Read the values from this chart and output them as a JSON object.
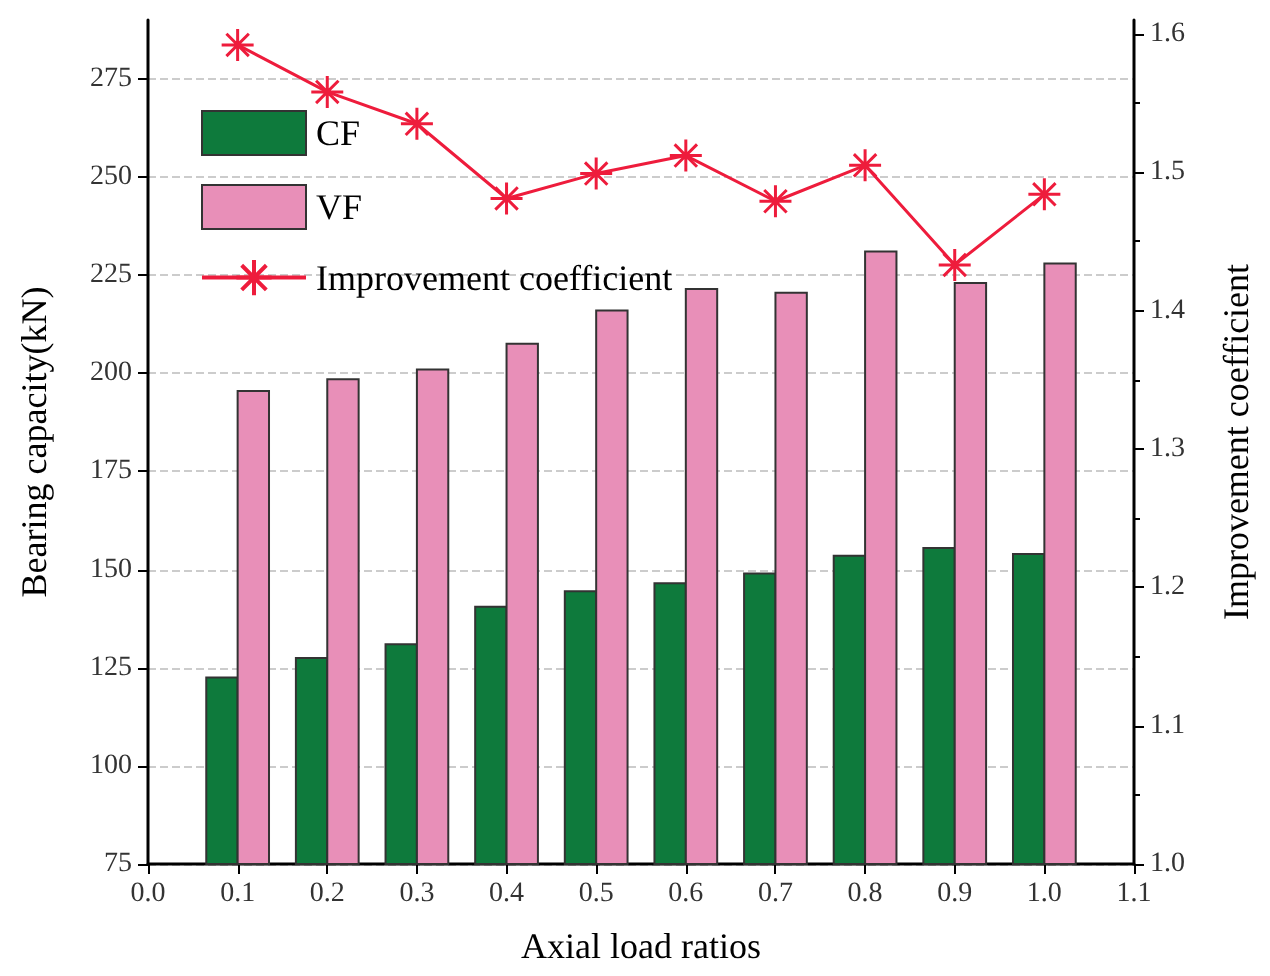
{
  "chart_data": {
    "type": "bar",
    "xlabel": "Axial load ratios",
    "ylabel": "Bearing capacity(kN)",
    "y2label": "Improvement coefficient",
    "x": [
      0.1,
      0.2,
      0.3,
      0.4,
      0.5,
      0.6,
      0.7,
      0.8,
      0.9,
      1.0
    ],
    "xlim": [
      0.0,
      1.1
    ],
    "xticks": [
      {
        "value": 0.0,
        "label": "0.0"
      },
      0.1,
      0.2,
      0.3,
      0.4,
      0.5,
      0.6,
      0.7,
      0.8,
      0.9,
      {
        "value": 1.0,
        "label": "1.0"
      },
      1.1
    ],
    "ylim": [
      75,
      290
    ],
    "yticks": [
      75,
      100,
      125,
      150,
      175,
      200,
      225,
      250,
      275
    ],
    "y2lim": [
      1.0,
      1.61
    ],
    "y2ticks": [
      {
        "value": 1.0,
        "label": "1.0"
      },
      1.1,
      1.2,
      1.3,
      1.4,
      1.5,
      1.6
    ],
    "series": [
      {
        "name": "CF",
        "color": "#0e7a3c",
        "values": [
          122.5,
          127.5,
          131,
          140.5,
          144.5,
          146.5,
          149,
          153.5,
          155.5,
          154
        ]
      },
      {
        "name": "VF",
        "color": "#e88fb8",
        "values": [
          195.5,
          198.5,
          201,
          207.5,
          216,
          221.5,
          220.5,
          231,
          223,
          228
        ]
      },
      {
        "name": "Improvement coefficient",
        "type": "line",
        "axis": "y2",
        "color": "#ee1c3c",
        "marker": "cross",
        "values": [
          1.592,
          1.558,
          1.535,
          1.481,
          1.499,
          1.512,
          1.479,
          1.505,
          1.433,
          1.484
        ]
      }
    ],
    "grid": "y",
    "legend": "top left"
  }
}
